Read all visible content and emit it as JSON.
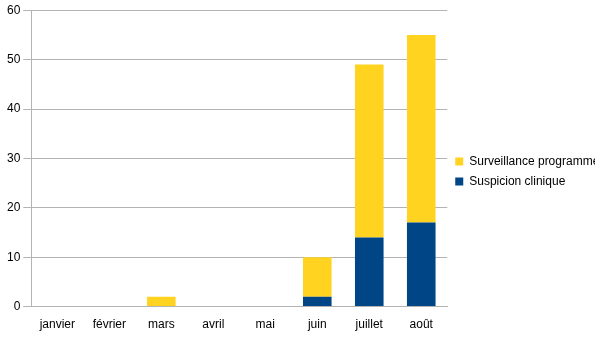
{
  "chart_data": {
    "type": "bar",
    "stacked": true,
    "grid": true,
    "legend": "right",
    "categories": [
      "janvier",
      "février",
      "mars",
      "avril",
      "mai",
      "juin",
      "juillet",
      "août"
    ],
    "series": [
      {
        "name": "Suspicion clinique",
        "color": "#004586",
        "values": [
          0,
          0,
          0,
          0,
          0,
          2,
          14,
          17
        ]
      },
      {
        "name": "Surveillance programmée",
        "color": "#ffd320",
        "values": [
          0,
          0,
          2,
          0,
          0,
          8,
          35,
          38
        ]
      }
    ],
    "ylim": [
      0,
      60
    ],
    "yticks": [
      0,
      10,
      20,
      30,
      40,
      50,
      60
    ]
  }
}
